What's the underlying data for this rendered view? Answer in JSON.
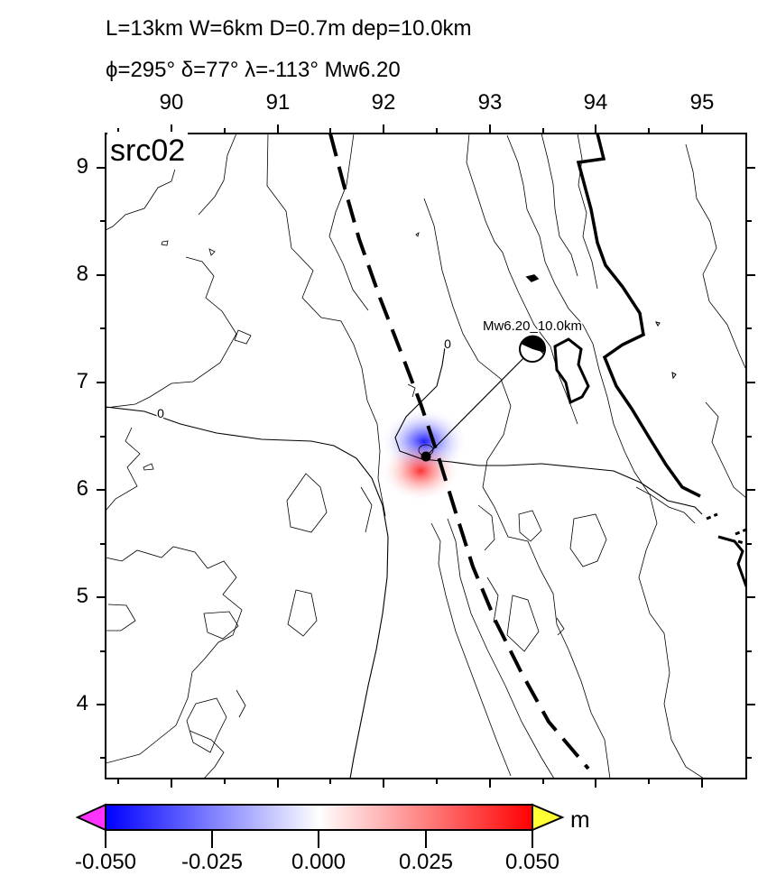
{
  "header": {
    "line1": "L=13km W=6km D=0.7m dep=10.0km",
    "line2": "ϕ=295° δ=77° λ=-113° Mw6.20"
  },
  "panel_label": "src02",
  "axes": {
    "lon_ticks": [
      "90",
      "91",
      "92",
      "93",
      "94",
      "95"
    ],
    "lat_ticks": [
      "9",
      "8",
      "7",
      "6",
      "5",
      "4"
    ]
  },
  "contour_labels": [
    "0",
    "0"
  ],
  "event": {
    "label": "Mw6.20_10.0km",
    "magnitude": "Mw6.20",
    "depth": "10.0km"
  },
  "colorbar": {
    "ticks": [
      "-0.050",
      "-0.025",
      "0.000",
      "0.025",
      "0.050"
    ],
    "unit": "m",
    "colors": {
      "low": "#0000ff",
      "mid": "#ffffff",
      "high": "#ff0000",
      "under": "#ff33ff",
      "over": "#ffff33"
    }
  }
}
